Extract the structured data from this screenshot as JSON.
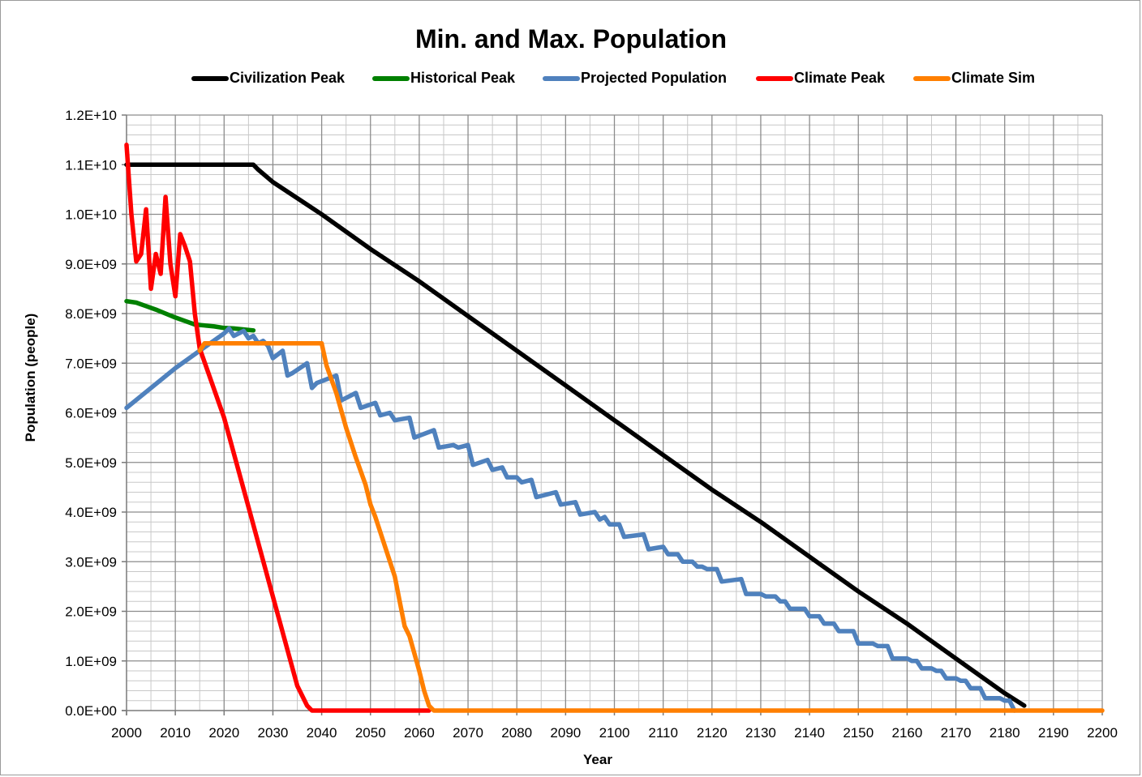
{
  "chart_data": {
    "type": "line",
    "title": "Min. and Max. Population",
    "xlabel": "Year",
    "ylabel": "Population (people)",
    "xlim": [
      2000,
      2200
    ],
    "ylim": [
      0,
      12000000000
    ],
    "x_ticks": [
      2000,
      2010,
      2020,
      2030,
      2040,
      2050,
      2060,
      2070,
      2080,
      2090,
      2100,
      2110,
      2120,
      2130,
      2140,
      2150,
      2160,
      2170,
      2180,
      2190,
      2200
    ],
    "x_tick_labels": [
      "2000",
      "2010",
      "2020",
      "2030",
      "2040",
      "2050",
      "2060",
      "2070",
      "2080",
      "2090",
      "2100",
      "2110",
      "2120",
      "2130",
      "2140",
      "2150",
      "2160",
      "2170",
      "2180",
      "2190",
      "2200"
    ],
    "y_ticks": [
      0,
      1000000000,
      2000000000,
      3000000000,
      4000000000,
      5000000000,
      6000000000,
      7000000000,
      8000000000,
      9000000000,
      10000000000,
      11000000000,
      12000000000
    ],
    "y_tick_labels": [
      "0.0E+00",
      "1.0E+09",
      "2.0E+09",
      "3.0E+09",
      "4.0E+09",
      "5.0E+09",
      "6.0E+09",
      "7.0E+09",
      "8.0E+09",
      "9.0E+09",
      "1.0E+10",
      "1.1E+10",
      "1.2E+10"
    ],
    "grid": true,
    "legend_position": "top",
    "series": [
      {
        "name": "Civilization Peak",
        "color": "#000000",
        "x": [
          2000,
          2026,
          2027,
          2030,
          2040,
          2050,
          2060,
          2070,
          2080,
          2090,
          2100,
          2110,
          2120,
          2130,
          2140,
          2150,
          2160,
          2170,
          2180,
          2184
        ],
        "y": [
          11000000000,
          11000000000,
          10900000000,
          10650000000,
          10000000000,
          9300000000,
          8650000000,
          7950000000,
          7250000000,
          6550000000,
          5850000000,
          5150000000,
          4450000000,
          3800000000,
          3100000000,
          2400000000,
          1750000000,
          1050000000,
          350000000,
          100000000
        ]
      },
      {
        "name": "Historical Peak",
        "color": "#008000",
        "x": [
          2000,
          2002,
          2004,
          2006,
          2008,
          2010,
          2012,
          2014,
          2016,
          2018,
          2020,
          2022,
          2024,
          2026
        ],
        "y": [
          8250000000,
          8220000000,
          8150000000,
          8080000000,
          8000000000,
          7920000000,
          7850000000,
          7780000000,
          7760000000,
          7740000000,
          7710000000,
          7700000000,
          7680000000,
          7660000000
        ]
      },
      {
        "name": "Projected Population",
        "color": "#4f81bd",
        "x": [
          2000,
          2005,
          2010,
          2015,
          2020,
          2021,
          2022,
          2023,
          2024,
          2025,
          2026,
          2027,
          2028,
          2029,
          2030,
          2032,
          2033,
          2034,
          2037,
          2038,
          2039,
          2043,
          2044,
          2047,
          2048,
          2051,
          2052,
          2054,
          2055,
          2058,
          2059,
          2063,
          2064,
          2067,
          2068,
          2070,
          2071,
          2074,
          2075,
          2077,
          2078,
          2080,
          2081,
          2083,
          2084,
          2088,
          2089,
          2092,
          2093,
          2096,
          2097,
          2098,
          2099,
          2101,
          2102,
          2106,
          2107,
          2110,
          2111,
          2113,
          2114,
          2116,
          2117,
          2118,
          2119,
          2121,
          2122,
          2126,
          2127,
          2130,
          2131,
          2133,
          2134,
          2135,
          2136,
          2139,
          2140,
          2142,
          2143,
          2145,
          2146,
          2149,
          2150,
          2153,
          2154,
          2156,
          2157,
          2160,
          2161,
          2162,
          2163,
          2165,
          2166,
          2167,
          2168,
          2170,
          2171,
          2172,
          2173,
          2175,
          2176,
          2179,
          2180,
          2181,
          2182
        ],
        "y": [
          6100000000,
          6500000000,
          6900000000,
          7250000000,
          7600000000,
          7700000000,
          7550000000,
          7600000000,
          7650000000,
          7500000000,
          7550000000,
          7400000000,
          7450000000,
          7350000000,
          7100000000,
          7250000000,
          6750000000,
          6800000000,
          7000000000,
          6500000000,
          6600000000,
          6750000000,
          6250000000,
          6400000000,
          6100000000,
          6200000000,
          5950000000,
          6000000000,
          5850000000,
          5900000000,
          5500000000,
          5650000000,
          5300000000,
          5350000000,
          5300000000,
          5350000000,
          4950000000,
          5050000000,
          4850000000,
          4900000000,
          4700000000,
          4700000000,
          4600000000,
          4650000000,
          4300000000,
          4400000000,
          4150000000,
          4200000000,
          3950000000,
          4000000000,
          3850000000,
          3900000000,
          3750000000,
          3750000000,
          3500000000,
          3550000000,
          3250000000,
          3300000000,
          3150000000,
          3150000000,
          3000000000,
          3000000000,
          2900000000,
          2900000000,
          2850000000,
          2850000000,
          2600000000,
          2650000000,
          2350000000,
          2350000000,
          2300000000,
          2300000000,
          2200000000,
          2200000000,
          2050000000,
          2050000000,
          1900000000,
          1900000000,
          1750000000,
          1750000000,
          1600000000,
          1600000000,
          1350000000,
          1350000000,
          1300000000,
          1300000000,
          1050000000,
          1050000000,
          1000000000,
          1000000000,
          850000000,
          850000000,
          800000000,
          800000000,
          650000000,
          650000000,
          600000000,
          600000000,
          450000000,
          450000000,
          250000000,
          250000000,
          200000000,
          200000000,
          0
        ]
      },
      {
        "name": "Climate Peak",
        "color": "#ff0000",
        "x": [
          2000,
          2001,
          2002,
          2003,
          2004,
          2005,
          2006,
          2007,
          2008,
          2009,
          2010,
          2011,
          2012,
          2013,
          2014,
          2015,
          2020,
          2025,
          2030,
          2035,
          2037,
          2038,
          2040,
          2050,
          2060,
          2062
        ],
        "y": [
          11400000000,
          10000000000,
          9050000000,
          9200000000,
          10100000000,
          8500000000,
          9200000000,
          8800000000,
          10350000000,
          9000000000,
          8350000000,
          9600000000,
          9350000000,
          9050000000,
          8000000000,
          7300000000,
          5900000000,
          4100000000,
          2300000000,
          500000000,
          100000000,
          0,
          0,
          0,
          0,
          0
        ]
      },
      {
        "name": "Climate Sim",
        "color": "#ff7f00",
        "x": [
          2015,
          2016,
          2020,
          2030,
          2040,
          2041,
          2043,
          2045,
          2047,
          2049,
          2050,
          2051,
          2053,
          2055,
          2056,
          2057,
          2058,
          2060,
          2061,
          2062,
          2063,
          2064,
          2070,
          2080,
          2090,
          2100,
          2150,
          2200
        ],
        "y": [
          7250000000,
          7400000000,
          7400000000,
          7400000000,
          7400000000,
          6950000000,
          6400000000,
          5700000000,
          5100000000,
          4550000000,
          4150000000,
          3900000000,
          3300000000,
          2700000000,
          2200000000,
          1700000000,
          1500000000,
          800000000,
          400000000,
          100000000,
          0,
          0,
          0,
          0,
          0,
          0,
          0,
          0
        ]
      }
    ]
  }
}
